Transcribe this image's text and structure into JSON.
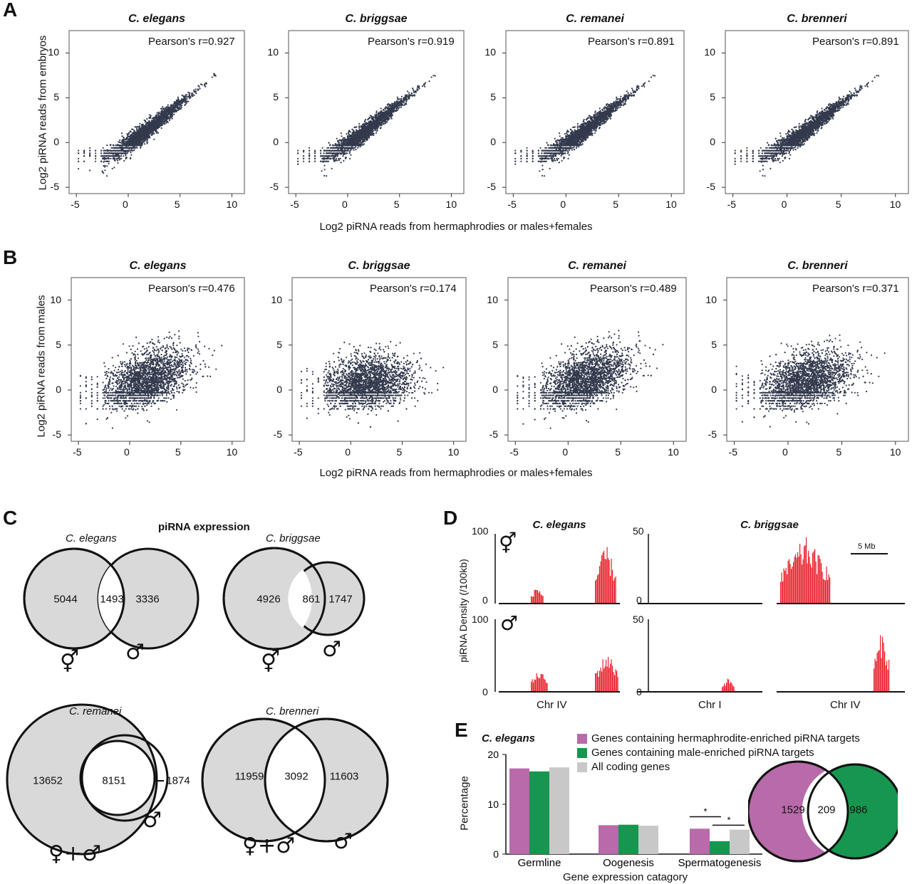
{
  "panelA": {
    "label": "A",
    "ylabel": "Log2 piRNA reads from embryos",
    "xlabel": "Log2 piRNA reads from hermaphrodies or males+females",
    "plots": [
      {
        "species": "C. elegans",
        "pearson": "Pearson's r=0.927"
      },
      {
        "species": "C. briggsae",
        "pearson": "Pearson's r=0.919"
      },
      {
        "species": "C. remanei",
        "pearson": "Pearson's r=0.891"
      },
      {
        "species": "C. brenneri",
        "pearson": "Pearson's r=0.891"
      }
    ],
    "yticks": [
      "10",
      "5",
      "0",
      "-5"
    ],
    "xticks": [
      "-5",
      "0",
      "5",
      "10"
    ]
  },
  "panelB": {
    "label": "B",
    "ylabel": "Log2 piRNA reads from males",
    "xlabel": "Log2 piRNA reads from hermaphrodies or males+females",
    "plots": [
      {
        "species": "C. elegans",
        "pearson": "Pearson's r=0.476"
      },
      {
        "species": "C. briggsae",
        "pearson": "Pearson's r=0.174"
      },
      {
        "species": "C. remanei",
        "pearson": "Pearson's r=0.489"
      },
      {
        "species": "C. brenneri",
        "pearson": "Pearson's r=0.371"
      }
    ],
    "yticks": [
      "10",
      "5",
      "0",
      "-5"
    ],
    "xticks": [
      "-5",
      "0",
      "5",
      "10"
    ]
  },
  "panelC": {
    "label": "C",
    "title": "piRNA expression",
    "venns": [
      {
        "species": "C. elegans",
        "left": "5044",
        "overlap": "1493",
        "right": "3336",
        "left_sym": "⚥",
        "right_sym": "♂"
      },
      {
        "species": "C. briggsae",
        "left": "4926",
        "overlap": "861",
        "right": "1747",
        "left_sym": "⚥",
        "right_sym": "♂"
      },
      {
        "species": "C. remanei",
        "left": "13652",
        "overlap": "8151",
        "right": "1874",
        "left_sym": "♀+♂",
        "right_sym": "♂"
      },
      {
        "species": "C. brenneri",
        "left": "11959",
        "overlap": "3092",
        "right": "11603",
        "left_sym": "♀+♂",
        "right_sym": "♂"
      }
    ]
  },
  "panelD": {
    "label": "D",
    "ylabel": "piRNA Density (/100kb)",
    "species": [
      "C. elegans",
      "C. briggsae"
    ],
    "row_symbols": [
      "⚥",
      "♂"
    ],
    "scalebar": "5 Mb",
    "yticks_elegans": [
      "100",
      "0"
    ],
    "yticks_briggsae": [
      "50",
      "0"
    ],
    "xlabels": [
      "Chr IV",
      "Chr I",
      "Chr IV"
    ],
    "bar_color": "#e8202a"
  },
  "panelE": {
    "label": "E",
    "species": "C. elegans",
    "ylabel": "Percentage",
    "xlabel": "Gene expression catagory",
    "legend": [
      "Genes containing hermaphrodite-enriched piRNA targets",
      "Genes containing male-enriched piRNA targets",
      "All coding genes"
    ],
    "colors": [
      "#b86aaa",
      "#17964f",
      "#c8c8c8"
    ],
    "star": "*",
    "venn": {
      "left": "1529",
      "overlap": "209",
      "right": "986"
    }
  },
  "chart_data": [
    {
      "type": "bar",
      "title": "C. elegans",
      "xlabel": "Gene expression catagory",
      "ylabel": "Percentage",
      "ylim": [
        0,
        20
      ],
      "yticks": [
        0,
        10,
        20
      ],
      "categories": [
        "Germline",
        "Oogenesis",
        "Spermatogenesis"
      ],
      "series": [
        {
          "name": "Genes containing hermaphrodite-enriched piRNA targets",
          "values": [
            17.2,
            5.8,
            5.1
          ]
        },
        {
          "name": "Genes containing male-enriched piRNA targets",
          "values": [
            16.6,
            5.9,
            2.6
          ]
        },
        {
          "name": "All coding genes",
          "values": [
            17.4,
            5.7,
            4.9
          ]
        }
      ],
      "legend": "top"
    }
  ]
}
